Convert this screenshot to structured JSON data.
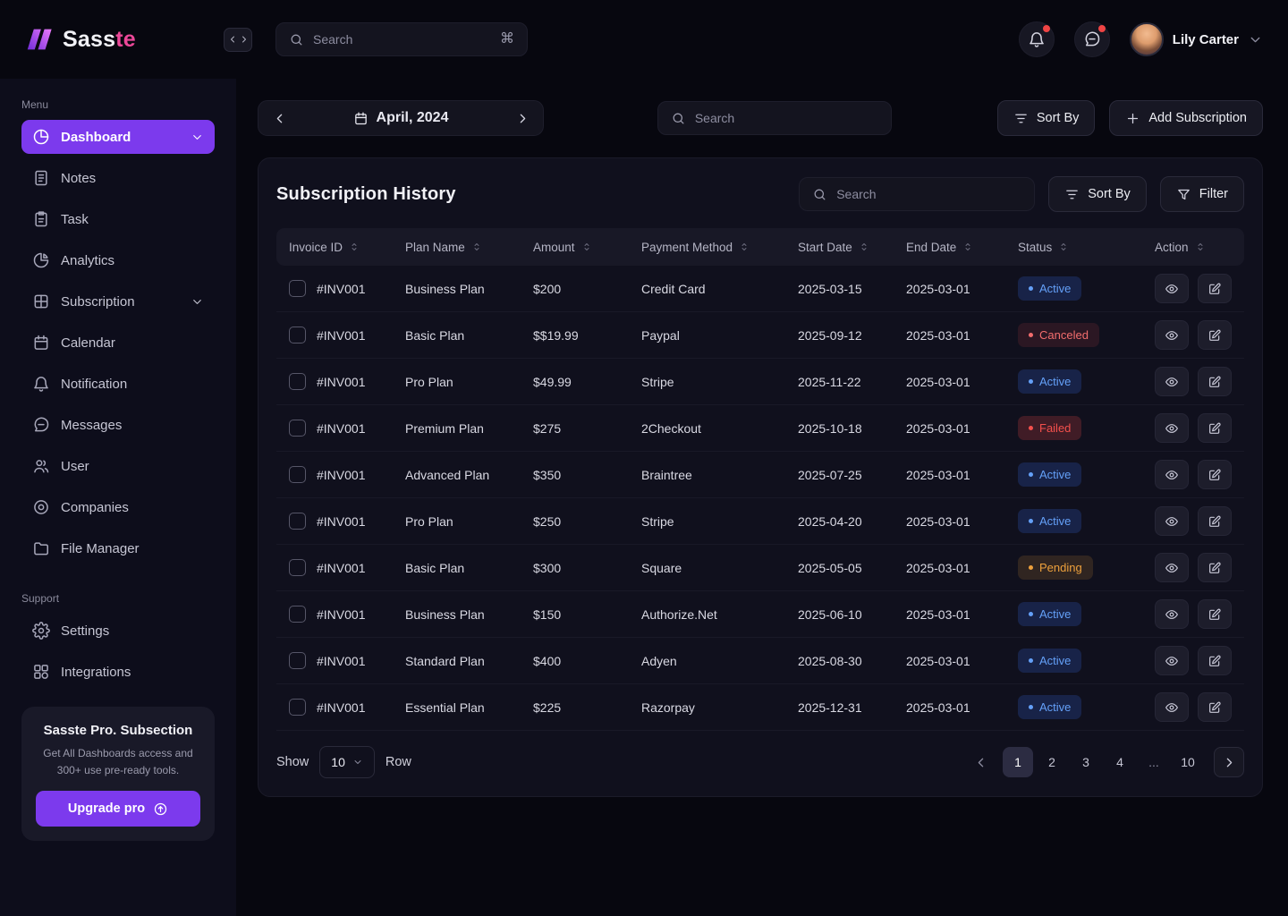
{
  "brand": {
    "name_primary": "Sass",
    "name_accent": "te"
  },
  "header": {
    "search_placeholder": "Search",
    "search_shortcut": "⌘",
    "user_name": "Lily Carter"
  },
  "sidebar": {
    "menu_label": "Menu",
    "items": [
      {
        "label": "Dashboard",
        "icon": "dashboard",
        "active": true,
        "chevron": true
      },
      {
        "label": "Notes",
        "icon": "notes"
      },
      {
        "label": "Task",
        "icon": "task"
      },
      {
        "label": "Analytics",
        "icon": "analytics"
      },
      {
        "label": "Subscription",
        "icon": "subscription",
        "chevron": true
      },
      {
        "label": "Calendar",
        "icon": "calendar"
      },
      {
        "label": "Notification",
        "icon": "bell"
      },
      {
        "label": "Messages",
        "icon": "chat"
      },
      {
        "label": "User",
        "icon": "user"
      },
      {
        "label": "Companies",
        "icon": "companies"
      },
      {
        "label": "File Manager",
        "icon": "file-manager"
      }
    ],
    "support_label": "Support",
    "support_items": [
      {
        "label": "Settings",
        "icon": "settings"
      },
      {
        "label": "Integrations",
        "icon": "integrations"
      }
    ],
    "promo": {
      "title": "Sasste Pro. Subsection",
      "description": "Get All Dashboards access and 300+ use pre-ready tools.",
      "button_label": "Upgrade pro"
    }
  },
  "toolbar": {
    "date_label": "April, 2024",
    "search_placeholder": "Search",
    "sort_by_label": "Sort By",
    "add_subscription_label": "Add Subscription"
  },
  "table_card": {
    "title": "Subscription History",
    "search_placeholder": "Search",
    "sort_by_label": "Sort By",
    "filter_label": "Filter",
    "columns": [
      "Invoice ID",
      "Plan Name",
      "Amount",
      "Payment Method",
      "Start Date",
      "End Date",
      "Status",
      "Action"
    ],
    "rows": [
      {
        "invoice": "#INV001",
        "plan": "Business Plan",
        "amount": "$200",
        "method": "Credit Card",
        "start": "2025-03-15",
        "end": "2025-03-01",
        "status": "Active",
        "status_type": "active"
      },
      {
        "invoice": "#INV001",
        "plan": "Basic Plan",
        "amount": "$$19.99",
        "method": "Paypal",
        "start": "2025-09-12",
        "end": "2025-03-01",
        "status": "Canceled",
        "status_type": "canceled"
      },
      {
        "invoice": "#INV001",
        "plan": "Pro Plan",
        "amount": "$49.99",
        "method": "Stripe",
        "start": "2025-11-22",
        "end": "2025-03-01",
        "status": "Active",
        "status_type": "active"
      },
      {
        "invoice": "#INV001",
        "plan": "Premium Plan",
        "amount": "$275",
        "method": "2Checkout",
        "start": "2025-10-18",
        "end": "2025-03-01",
        "status": "Failed",
        "status_type": "failed"
      },
      {
        "invoice": "#INV001",
        "plan": "Advanced Plan",
        "amount": "$350",
        "method": "Braintree",
        "start": "2025-07-25",
        "end": "2025-03-01",
        "status": "Active",
        "status_type": "active"
      },
      {
        "invoice": "#INV001",
        "plan": "Pro Plan",
        "amount": "$250",
        "method": "Stripe",
        "start": "2025-04-20",
        "end": "2025-03-01",
        "status": "Active",
        "status_type": "active"
      },
      {
        "invoice": "#INV001",
        "plan": "Basic Plan",
        "amount": "$300",
        "method": "Square",
        "start": "2025-05-05",
        "end": "2025-03-01",
        "status": "Pending",
        "status_type": "pending"
      },
      {
        "invoice": "#INV001",
        "plan": "Business Plan",
        "amount": "$150",
        "method": "Authorize.Net",
        "start": "2025-06-10",
        "end": "2025-03-01",
        "status": "Active",
        "status_type": "active"
      },
      {
        "invoice": "#INV001",
        "plan": "Standard Plan",
        "amount": "$400",
        "method": "Adyen",
        "start": "2025-08-30",
        "end": "2025-03-01",
        "status": "Active",
        "status_type": "active"
      },
      {
        "invoice": "#INV001",
        "plan": "Essential Plan",
        "amount": "$225",
        "method": "Razorpay",
        "start": "2025-12-31",
        "end": "2025-03-01",
        "status": "Active",
        "status_type": "active"
      }
    ],
    "footer": {
      "show_label": "Show",
      "rows_per_page": "10",
      "row_label": "Row",
      "pages": [
        "1",
        "2",
        "3",
        "4",
        "...",
        "10"
      ],
      "active_page": "1"
    }
  },
  "colors": {
    "accent_purple": "#7c3aed",
    "accent_pink": "#ec4899",
    "status_active": "#64a0f8",
    "status_canceled": "#f26d6d",
    "status_failed": "#f4504c",
    "status_pending": "#eda03c"
  }
}
